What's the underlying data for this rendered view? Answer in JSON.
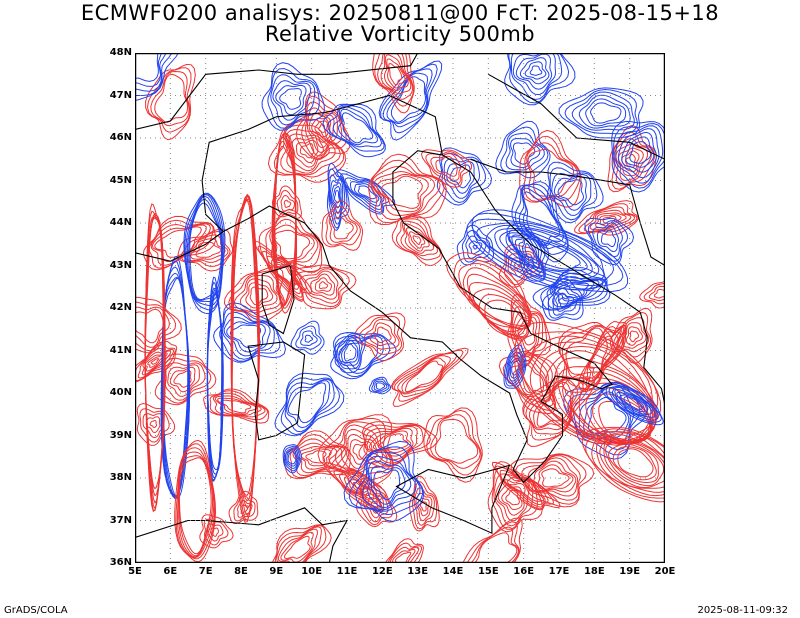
{
  "title": {
    "line1": "ECMWF0200 analisys: 20250811@00 FcT: 2025-08-15+18",
    "line2": "Relative Vorticity 500mb"
  },
  "lat_labels": [
    "48N",
    "47N",
    "46N",
    "45N",
    "44N",
    "43N",
    "42N",
    "41N",
    "40N",
    "39N",
    "38N",
    "37N",
    "36N"
  ],
  "lon_labels": [
    "5E",
    "6E",
    "7E",
    "8E",
    "9E",
    "10E",
    "11E",
    "12E",
    "13E",
    "14E",
    "15E",
    "16E",
    "17E",
    "18E",
    "19E",
    "20E"
  ],
  "footer": {
    "left": "GrADS/COLA",
    "right": "2025-08-11-09:32"
  },
  "colors": {
    "positive_vorticity": "#ee3333",
    "negative_vorticity": "#2244ee",
    "coastline": "#000000",
    "grid": "#888888"
  },
  "map": {
    "lon_range": [
      5,
      20
    ],
    "lat_range": [
      36,
      48
    ],
    "grid": "dotted"
  }
}
